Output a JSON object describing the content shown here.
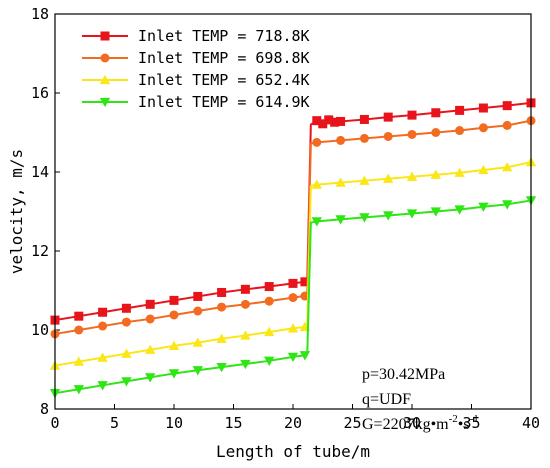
{
  "chart_data": {
    "type": "line",
    "xlabel": "Length of tube/m",
    "ylabel": "velocity, m/s",
    "xlim": [
      0,
      40
    ],
    "ylim": [
      8,
      18
    ],
    "xticks": [
      0,
      5,
      10,
      15,
      20,
      25,
      30,
      35,
      40
    ],
    "yticks": [
      8,
      10,
      12,
      14,
      16,
      18
    ],
    "grid": false,
    "legend_position": "top-left",
    "series": [
      {
        "name": "Inlet TEMP = 718.8K",
        "color": "#e8141b",
        "marker": "square",
        "x": [
          0,
          2,
          4,
          6,
          8,
          10,
          12,
          14,
          16,
          18,
          20,
          21,
          21.2,
          21.5,
          22,
          22.5,
          23,
          23.5,
          24,
          26,
          28,
          30,
          32,
          34,
          36,
          38,
          40
        ],
        "y": [
          10.25,
          10.35,
          10.45,
          10.55,
          10.65,
          10.75,
          10.85,
          10.95,
          11.03,
          11.1,
          11.18,
          11.22,
          11.3,
          15.2,
          15.3,
          15.22,
          15.32,
          15.26,
          15.28,
          15.33,
          15.39,
          15.44,
          15.5,
          15.56,
          15.62,
          15.68,
          15.75
        ]
      },
      {
        "name": "Inlet TEMP = 698.8K",
        "color": "#f26b21",
        "marker": "circle",
        "x": [
          0,
          2,
          4,
          6,
          8,
          10,
          12,
          14,
          16,
          18,
          20,
          21,
          21.2,
          21.5,
          22,
          24,
          26,
          28,
          30,
          32,
          34,
          36,
          38,
          40
        ],
        "y": [
          9.9,
          10.0,
          10.1,
          10.2,
          10.28,
          10.38,
          10.48,
          10.58,
          10.65,
          10.73,
          10.82,
          10.86,
          10.9,
          14.72,
          14.75,
          14.8,
          14.85,
          14.9,
          14.95,
          15.0,
          15.05,
          15.12,
          15.18,
          15.3
        ]
      },
      {
        "name": "Inlet TEMP = 652.4K",
        "color": "#fbe617",
        "marker": "triangle-up",
        "x": [
          0,
          2,
          4,
          6,
          8,
          10,
          12,
          14,
          16,
          18,
          20,
          21,
          21.2,
          21.5,
          22,
          24,
          26,
          28,
          30,
          32,
          34,
          36,
          38,
          40
        ],
        "y": [
          9.1,
          9.2,
          9.3,
          9.4,
          9.5,
          9.6,
          9.68,
          9.78,
          9.86,
          9.95,
          10.04,
          10.08,
          10.12,
          13.65,
          13.68,
          13.73,
          13.78,
          13.83,
          13.88,
          13.93,
          13.98,
          14.05,
          14.12,
          14.25
        ]
      },
      {
        "name": "Inlet TEMP = 614.9K",
        "color": "#2ee614",
        "marker": "triangle-down",
        "x": [
          0,
          2,
          4,
          6,
          8,
          10,
          12,
          14,
          16,
          18,
          20,
          21,
          21.2,
          21.5,
          22,
          24,
          26,
          28,
          30,
          32,
          34,
          36,
          38,
          40
        ],
        "y": [
          8.4,
          8.5,
          8.6,
          8.7,
          8.8,
          8.9,
          8.98,
          9.06,
          9.14,
          9.22,
          9.32,
          9.36,
          9.4,
          12.72,
          12.75,
          12.8,
          12.85,
          12.9,
          12.95,
          13.0,
          13.05,
          13.12,
          13.18,
          13.28
        ]
      }
    ],
    "annotations": {
      "p": "p=30.42MPa",
      "q": "q=UDF",
      "g_main": "G=2207kg•m",
      "g_exp1": "-2",
      "g_mid": "•s",
      "g_exp2": "-1"
    }
  }
}
